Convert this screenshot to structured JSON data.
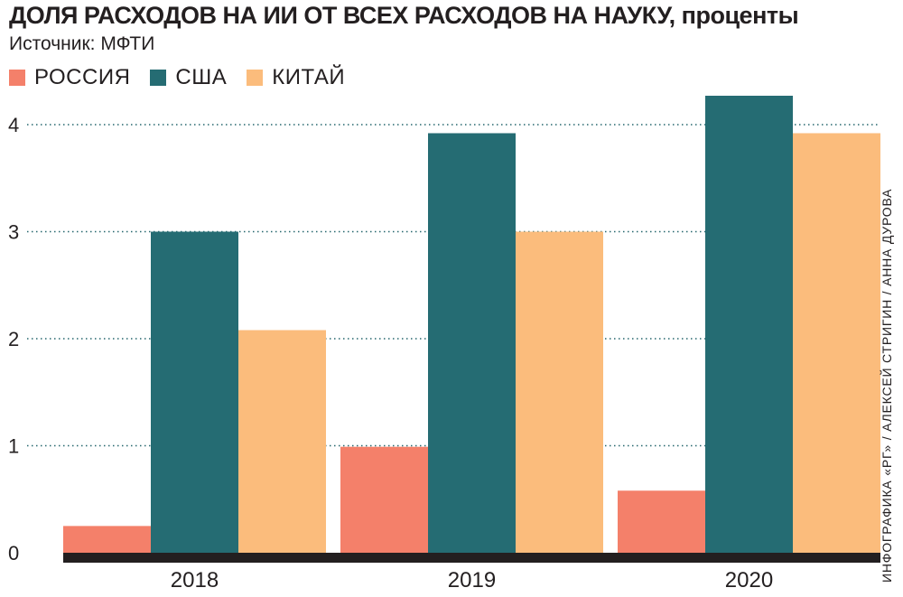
{
  "header": {
    "title_main": "ДОЛЯ РАСХОДОВ НА ИИ ОТ ВСЕХ РАСХОДОВ НА НАУКУ,",
    "title_unit": "проценты",
    "source": "Источник: МФТИ"
  },
  "credit": "ИНФОГРАФИКА «РГ» / АЛЕКСЕЙ СТРИГИН / АННА ДУРОВА",
  "colors": {
    "russia": "#f4806a",
    "usa": "#256c73",
    "china": "#fbbc7c",
    "axis": "#231f20",
    "grid": "#25676e"
  },
  "chart_data": {
    "type": "bar",
    "title": "ДОЛЯ РАСХОДОВ НА ИИ ОТ ВСЕХ РАСХОДОВ НА НАУКУ, проценты",
    "categories": [
      "2018",
      "2019",
      "2020"
    ],
    "series": [
      {
        "name": "РОССИЯ",
        "values": [
          0.25,
          0.99,
          0.58
        ]
      },
      {
        "name": "США",
        "values": [
          3.0,
          3.92,
          4.27
        ]
      },
      {
        "name": "КИТАЙ",
        "values": [
          2.08,
          3.0,
          3.92
        ]
      }
    ],
    "yticks": [
      "0",
      "1",
      "2",
      "3",
      "4"
    ],
    "ylim": [
      0,
      4.3
    ],
    "grid": true,
    "legend": "top-left"
  }
}
